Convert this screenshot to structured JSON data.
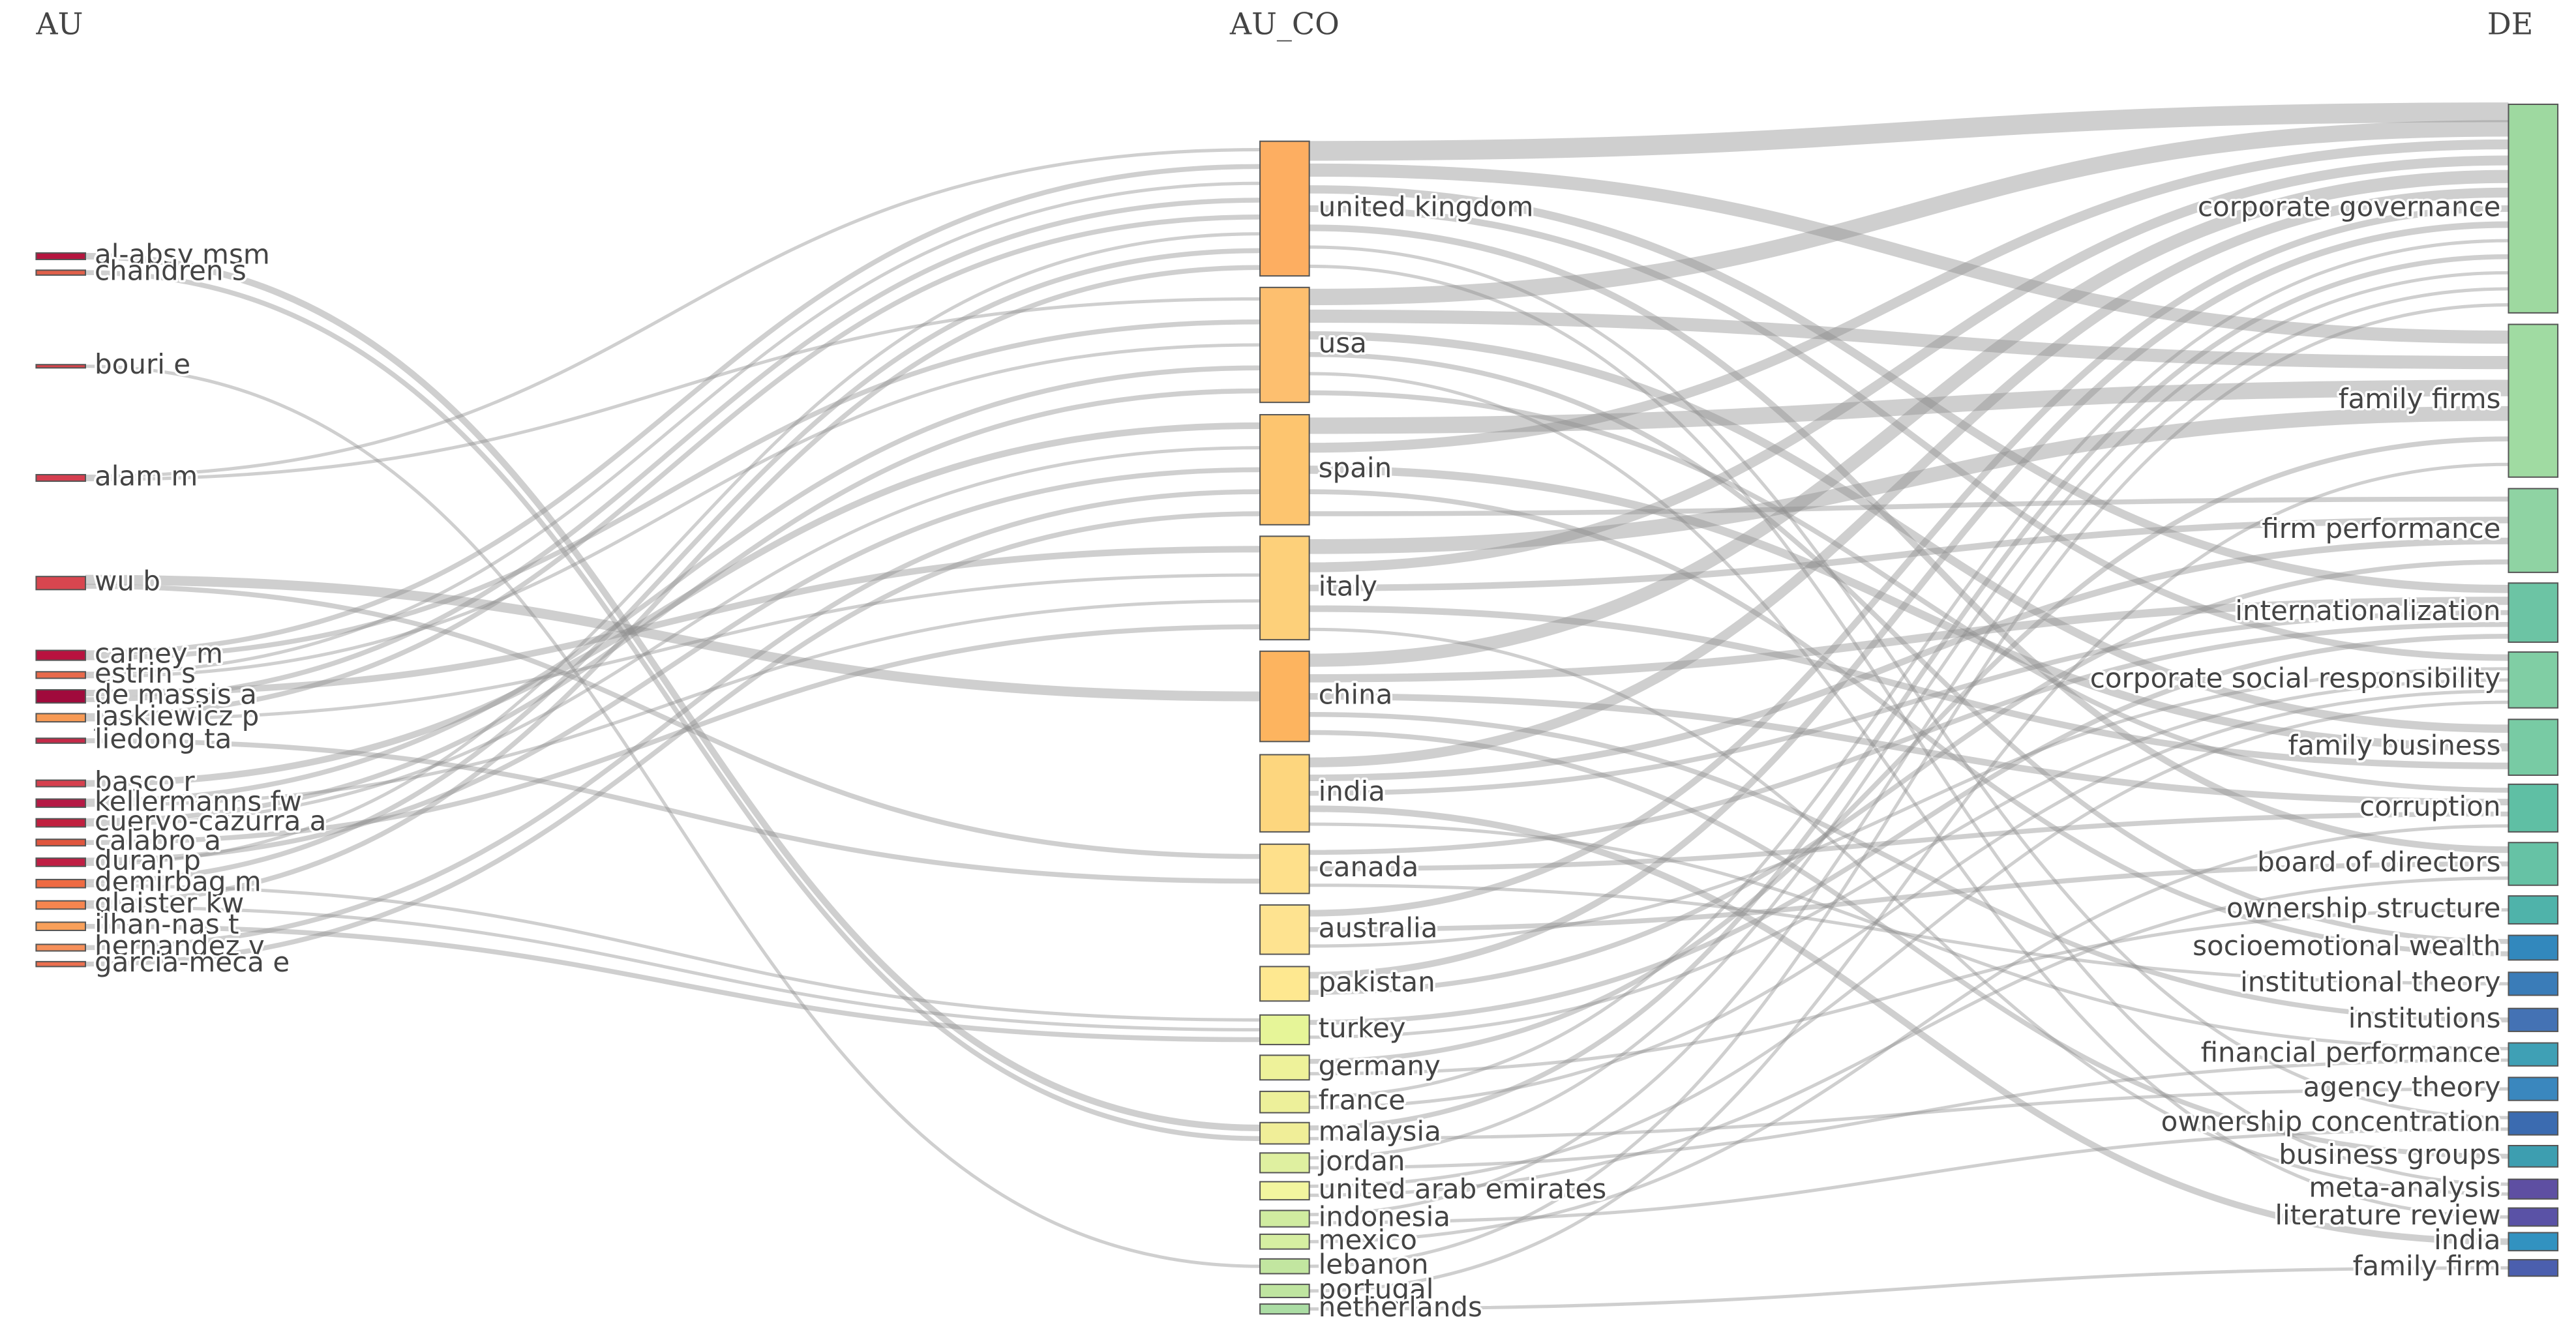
{
  "chart_data": {
    "type": "sankey",
    "columns": [
      {
        "title": "AU",
        "nodes": [
          {
            "label": "al-absy msm",
            "value": 4,
            "color": "#b5163f"
          },
          {
            "label": "chandren s",
            "value": 3,
            "color": "#e0604a"
          },
          {
            "label": "bouri e",
            "value": 2,
            "color": "#d6444a"
          },
          {
            "label": "alam m",
            "value": 4,
            "color": "#d53e4f"
          },
          {
            "label": "wu b",
            "value": 8,
            "color": "#d8464f"
          },
          {
            "label": "carney m",
            "value": 6,
            "color": "#b8123f"
          },
          {
            "label": "estrin s",
            "value": 4,
            "color": "#e8694a"
          },
          {
            "label": "de massis a",
            "value": 8,
            "color": "#a00a3c"
          },
          {
            "label": "jaskiewicz p",
            "value": 5,
            "color": "#f79a55"
          },
          {
            "label": "liedong ta",
            "value": 3,
            "color": "#c42a48"
          },
          {
            "label": "basco r",
            "value": 4,
            "color": "#d6404e"
          },
          {
            "label": "kellermanns fw",
            "value": 5,
            "color": "#b51a45"
          },
          {
            "label": "cuervo-cazurra a",
            "value": 5,
            "color": "#c0203f"
          },
          {
            "label": "calabro a",
            "value": 4,
            "color": "#e0563f"
          },
          {
            "label": "duran p",
            "value": 5,
            "color": "#bf1f44"
          },
          {
            "label": "demirbag m",
            "value": 5,
            "color": "#ee6a42"
          },
          {
            "label": "glaister kw",
            "value": 5,
            "color": "#f6854f"
          },
          {
            "label": "ilhan-nas t",
            "value": 5,
            "color": "#f9a05a"
          },
          {
            "label": "hernandez v",
            "value": 4,
            "color": "#f6905a"
          },
          {
            "label": "garcia-meca e",
            "value": 3,
            "color": "#ec7050"
          }
        ]
      },
      {
        "title": "AU_CO",
        "nodes": [
          {
            "label": "united kingdom",
            "value": 82,
            "color": "#fdae61"
          },
          {
            "label": "usa",
            "value": 70,
            "color": "#fdbf6f"
          },
          {
            "label": "spain",
            "value": 67,
            "color": "#fdc56f"
          },
          {
            "label": "italy",
            "value": 63,
            "color": "#fdd07a"
          },
          {
            "label": "china",
            "value": 55,
            "color": "#fdb45f"
          },
          {
            "label": "india",
            "value": 47,
            "color": "#fdd67e"
          },
          {
            "label": "canada",
            "value": 30,
            "color": "#fee08b"
          },
          {
            "label": "australia",
            "value": 30,
            "color": "#fee390"
          },
          {
            "label": "pakistan",
            "value": 21,
            "color": "#fee890"
          },
          {
            "label": "turkey",
            "value": 18,
            "color": "#e6f598"
          },
          {
            "label": "germany",
            "value": 15,
            "color": "#eef29a"
          },
          {
            "label": "france",
            "value": 13,
            "color": "#edf09a"
          },
          {
            "label": "malaysia",
            "value": 13,
            "color": "#f0ee98"
          },
          {
            "label": "jordan",
            "value": 12,
            "color": "#dff0a0"
          },
          {
            "label": "united arab emirates",
            "value": 11,
            "color": "#f2f59f"
          },
          {
            "label": "indonesia",
            "value": 10,
            "color": "#d0eca0"
          },
          {
            "label": "mexico",
            "value": 9,
            "color": "#d6eea2"
          },
          {
            "label": "lebanon",
            "value": 9,
            "color": "#c2e6a0"
          },
          {
            "label": "portugal",
            "value": 8,
            "color": "#bfe5a0"
          },
          {
            "label": "netherlands",
            "value": 6,
            "color": "#abdda4"
          }
        ]
      },
      {
        "title": "DE",
        "nodes": [
          {
            "label": "corporate governance",
            "value": 127,
            "color": "#9ed9a0"
          },
          {
            "label": "family firms",
            "value": 93,
            "color": "#a0dba2"
          },
          {
            "label": "firm performance",
            "value": 51,
            "color": "#8fd3a3"
          },
          {
            "label": "internationalization",
            "value": 36,
            "color": "#6cc4a4"
          },
          {
            "label": "corporate social responsibility",
            "value": 34,
            "color": "#80cea4"
          },
          {
            "label": "family business",
            "value": 34,
            "color": "#78cba4"
          },
          {
            "label": "corruption",
            "value": 29,
            "color": "#5fbfa4"
          },
          {
            "label": "board of directors",
            "value": 26,
            "color": "#66c2a5"
          },
          {
            "label": "ownership structure",
            "value": 17,
            "color": "#4fb3aa"
          },
          {
            "label": "socioemotional wealth",
            "value": 15,
            "color": "#3288bd"
          },
          {
            "label": "institutional theory",
            "value": 14,
            "color": "#3a7cb8"
          },
          {
            "label": "institutions",
            "value": 14,
            "color": "#4472b4"
          },
          {
            "label": "financial performance",
            "value": 14,
            "color": "#3fa0b5"
          },
          {
            "label": "agency theory",
            "value": 14,
            "color": "#3a87be"
          },
          {
            "label": "ownership concentration",
            "value": 14,
            "color": "#3b6bb0"
          },
          {
            "label": "business groups",
            "value": 13,
            "color": "#3d9eb0"
          },
          {
            "label": "meta-analysis",
            "value": 12,
            "color": "#5e4fa2"
          },
          {
            "label": "literature review",
            "value": 11,
            "color": "#5a52a6"
          },
          {
            "label": "india",
            "value": 11,
            "color": "#3292c0"
          },
          {
            "label": "family firm",
            "value": 10,
            "color": "#4b5fae"
          }
        ]
      }
    ],
    "links": [
      {
        "from": 0,
        "source": 0,
        "target": 12,
        "value": 4
      },
      {
        "from": 0,
        "source": 1,
        "target": 12,
        "value": 3
      },
      {
        "from": 0,
        "source": 2,
        "target": 17,
        "value": 2
      },
      {
        "from": 0,
        "source": 3,
        "target": 0,
        "value": 2
      },
      {
        "from": 0,
        "source": 3,
        "target": 1,
        "value": 2
      },
      {
        "from": 0,
        "source": 4,
        "target": 4,
        "value": 6
      },
      {
        "from": 0,
        "source": 4,
        "target": 6,
        "value": 3
      },
      {
        "from": 0,
        "source": 5,
        "target": 0,
        "value": 3
      },
      {
        "from": 0,
        "source": 5,
        "target": 1,
        "value": 3
      },
      {
        "from": 0,
        "source": 6,
        "target": 0,
        "value": 2
      },
      {
        "from": 0,
        "source": 6,
        "target": 1,
        "value": 2
      },
      {
        "from": 0,
        "source": 7,
        "target": 3,
        "value": 4
      },
      {
        "from": 0,
        "source": 7,
        "target": 0,
        "value": 3
      },
      {
        "from": 0,
        "source": 8,
        "target": 0,
        "value": 3
      },
      {
        "from": 0,
        "source": 8,
        "target": 3,
        "value": 2
      },
      {
        "from": 0,
        "source": 9,
        "target": 6,
        "value": 3
      },
      {
        "from": 0,
        "source": 10,
        "target": 2,
        "value": 4
      },
      {
        "from": 0,
        "source": 11,
        "target": 1,
        "value": 3
      },
      {
        "from": 0,
        "source": 11,
        "target": 3,
        "value": 2
      },
      {
        "from": 0,
        "source": 12,
        "target": 1,
        "value": 3
      },
      {
        "from": 0,
        "source": 12,
        "target": 2,
        "value": 2
      },
      {
        "from": 0,
        "source": 13,
        "target": 3,
        "value": 3
      },
      {
        "from": 0,
        "source": 14,
        "target": 2,
        "value": 3
      },
      {
        "from": 0,
        "source": 14,
        "target": 0,
        "value": 2
      },
      {
        "from": 0,
        "source": 15,
        "target": 0,
        "value": 3
      },
      {
        "from": 0,
        "source": 15,
        "target": 9,
        "value": 2
      },
      {
        "from": 0,
        "source": 16,
        "target": 0,
        "value": 3
      },
      {
        "from": 0,
        "source": 16,
        "target": 9,
        "value": 2
      },
      {
        "from": 0,
        "source": 17,
        "target": 9,
        "value": 3
      },
      {
        "from": 0,
        "source": 18,
        "target": 2,
        "value": 3
      },
      {
        "from": 0,
        "source": 19,
        "target": 2,
        "value": 3
      },
      {
        "from": 1,
        "source": 0,
        "target": 0,
        "value": 12
      },
      {
        "from": 1,
        "source": 0,
        "target": 1,
        "value": 8
      },
      {
        "from": 1,
        "source": 0,
        "target": 3,
        "value": 5
      },
      {
        "from": 1,
        "source": 0,
        "target": 4,
        "value": 4
      },
      {
        "from": 1,
        "source": 0,
        "target": 7,
        "value": 4
      },
      {
        "from": 1,
        "source": 0,
        "target": 14,
        "value": 2
      },
      {
        "from": 1,
        "source": 0,
        "target": 16,
        "value": 2
      },
      {
        "from": 1,
        "source": 1,
        "target": 0,
        "value": 10
      },
      {
        "from": 1,
        "source": 1,
        "target": 1,
        "value": 8
      },
      {
        "from": 1,
        "source": 1,
        "target": 5,
        "value": 5
      },
      {
        "from": 1,
        "source": 1,
        "target": 9,
        "value": 3
      },
      {
        "from": 1,
        "source": 1,
        "target": 17,
        "value": 2
      },
      {
        "from": 1,
        "source": 1,
        "target": 6,
        "value": 3
      },
      {
        "from": 1,
        "source": 2,
        "target": 1,
        "value": 10
      },
      {
        "from": 1,
        "source": 2,
        "target": 0,
        "value": 6
      },
      {
        "from": 1,
        "source": 2,
        "target": 5,
        "value": 5
      },
      {
        "from": 1,
        "source": 2,
        "target": 9,
        "value": 3
      },
      {
        "from": 1,
        "source": 2,
        "target": 2,
        "value": 3
      },
      {
        "from": 1,
        "source": 3,
        "target": 1,
        "value": 9
      },
      {
        "from": 1,
        "source": 3,
        "target": 0,
        "value": 6
      },
      {
        "from": 1,
        "source": 3,
        "target": 2,
        "value": 4
      },
      {
        "from": 1,
        "source": 3,
        "target": 5,
        "value": 4
      },
      {
        "from": 1,
        "source": 3,
        "target": 16,
        "value": 2
      },
      {
        "from": 1,
        "source": 4,
        "target": 0,
        "value": 8
      },
      {
        "from": 1,
        "source": 4,
        "target": 3,
        "value": 5
      },
      {
        "from": 1,
        "source": 4,
        "target": 6,
        "value": 4
      },
      {
        "from": 1,
        "source": 4,
        "target": 11,
        "value": 3
      },
      {
        "from": 1,
        "source": 4,
        "target": 15,
        "value": 3
      },
      {
        "from": 1,
        "source": 5,
        "target": 0,
        "value": 6
      },
      {
        "from": 1,
        "source": 5,
        "target": 2,
        "value": 4
      },
      {
        "from": 1,
        "source": 5,
        "target": 3,
        "value": 3
      },
      {
        "from": 1,
        "source": 5,
        "target": 18,
        "value": 4
      },
      {
        "from": 1,
        "source": 5,
        "target": 12,
        "value": 2
      },
      {
        "from": 1,
        "source": 6,
        "target": 3,
        "value": 3
      },
      {
        "from": 1,
        "source": 6,
        "target": 6,
        "value": 3
      },
      {
        "from": 1,
        "source": 6,
        "target": 10,
        "value": 2
      },
      {
        "from": 1,
        "source": 7,
        "target": 0,
        "value": 4
      },
      {
        "from": 1,
        "source": 7,
        "target": 7,
        "value": 3
      },
      {
        "from": 1,
        "source": 7,
        "target": 4,
        "value": 2
      },
      {
        "from": 1,
        "source": 8,
        "target": 0,
        "value": 4
      },
      {
        "from": 1,
        "source": 8,
        "target": 2,
        "value": 3
      },
      {
        "from": 1,
        "source": 9,
        "target": 3,
        "value": 3
      },
      {
        "from": 1,
        "source": 9,
        "target": 4,
        "value": 2
      },
      {
        "from": 1,
        "source": 10,
        "target": 1,
        "value": 3
      },
      {
        "from": 1,
        "source": 10,
        "target": 8,
        "value": 2
      },
      {
        "from": 1,
        "source": 11,
        "target": 0,
        "value": 2
      },
      {
        "from": 1,
        "source": 11,
        "target": 4,
        "value": 2
      },
      {
        "from": 1,
        "source": 12,
        "target": 0,
        "value": 3
      },
      {
        "from": 1,
        "source": 12,
        "target": 13,
        "value": 2
      },
      {
        "from": 1,
        "source": 13,
        "target": 0,
        "value": 2
      },
      {
        "from": 1,
        "source": 13,
        "target": 12,
        "value": 2
      },
      {
        "from": 1,
        "source": 14,
        "target": 4,
        "value": 2
      },
      {
        "from": 1,
        "source": 14,
        "target": 7,
        "value": 2
      },
      {
        "from": 1,
        "source": 15,
        "target": 0,
        "value": 2
      },
      {
        "from": 1,
        "source": 15,
        "target": 14,
        "value": 2
      },
      {
        "from": 1,
        "source": 16,
        "target": 6,
        "value": 2
      },
      {
        "from": 1,
        "source": 17,
        "target": 0,
        "value": 2
      },
      {
        "from": 1,
        "source": 18,
        "target": 1,
        "value": 2
      },
      {
        "from": 1,
        "source": 19,
        "target": 19,
        "value": 2
      }
    ]
  }
}
